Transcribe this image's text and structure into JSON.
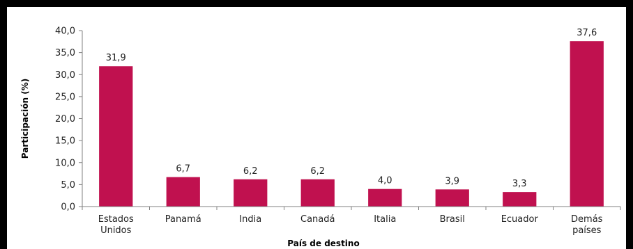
{
  "chart_data": {
    "type": "bar",
    "categories": [
      [
        "Estados",
        "Unidos"
      ],
      [
        "Panamá"
      ],
      [
        "India"
      ],
      [
        "Canadá"
      ],
      [
        "Italia"
      ],
      [
        "Brasil"
      ],
      [
        "Ecuador"
      ],
      [
        "Demás",
        "países"
      ]
    ],
    "values": [
      31.9,
      6.7,
      6.2,
      6.2,
      4.0,
      3.9,
      3.3,
      37.6
    ],
    "value_labels": [
      "31,9",
      "6,7",
      "6,2",
      "6,2",
      "4,0",
      "3,9",
      "3,3",
      "37,6"
    ],
    "ylabel": "Participación (%)",
    "xlabel": "País de destino",
    "ylim": [
      0,
      40
    ],
    "yticks": [
      "0,0",
      "5,0",
      "10,0",
      "15,0",
      "20,0",
      "25,0",
      "30,0",
      "35,0",
      "40,0"
    ],
    "grid": false,
    "legend": false,
    "bar_color": "#c0114f"
  }
}
